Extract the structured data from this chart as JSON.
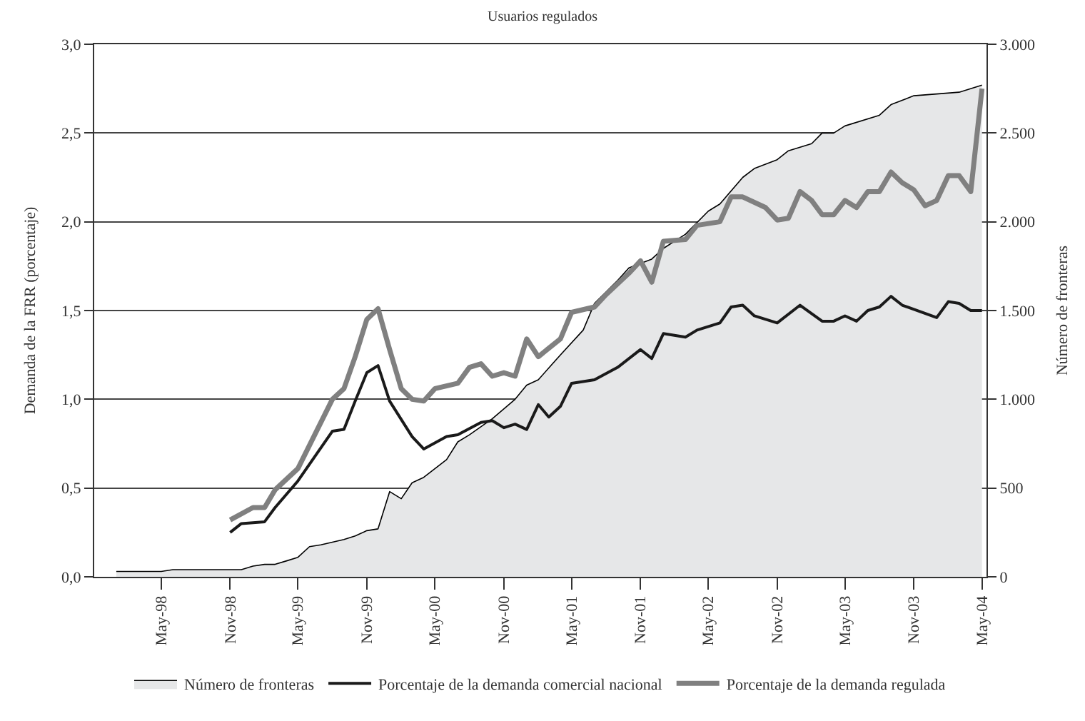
{
  "chart_data": {
    "type": "line",
    "title": "Usuarios regulados",
    "ylabel": "Demanda de la FRR (porcentaje)",
    "y2label": "Número de fronteras",
    "xlim": [
      "1997-11-03",
      "2004-05-13"
    ],
    "xticks": [
      {
        "value": "1998-05",
        "label": "May-98"
      },
      {
        "value": "1998-11",
        "label": "Nov-98"
      },
      {
        "value": "1999-05",
        "label": "May-99"
      },
      {
        "value": "1999-11",
        "label": "Nov-99"
      },
      {
        "value": "2000-05",
        "label": "May-00"
      },
      {
        "value": "2000-11",
        "label": "Nov-00"
      },
      {
        "value": "2001-05",
        "label": "May-01"
      },
      {
        "value": "2001-11",
        "label": "Nov-01"
      },
      {
        "value": "2002-05",
        "label": "May-02"
      },
      {
        "value": "2002-11",
        "label": "Nov-02"
      },
      {
        "value": "2003-05",
        "label": "May-03"
      },
      {
        "value": "2003-11",
        "label": "Nov-03"
      },
      {
        "value": "2004-05",
        "label": "May-04"
      }
    ],
    "ylim": [
      0,
      3
    ],
    "yticks": [
      {
        "value": 0,
        "label": "0,0"
      },
      {
        "value": 0.5,
        "label": "0,5"
      },
      {
        "value": 1,
        "label": "1,0"
      },
      {
        "value": 1.5,
        "label": "1,5"
      },
      {
        "value": 2,
        "label": "2,0"
      },
      {
        "value": 2.5,
        "label": "2,5"
      },
      {
        "value": 3,
        "label": "3,0"
      }
    ],
    "y2lim": [
      0,
      3000
    ],
    "y2ticks": [
      0,
      500,
      {
        "value": 1000,
        "label": "1.000"
      },
      {
        "value": 1500,
        "label": "1.500"
      },
      {
        "value": 2000,
        "label": "2.000"
      },
      {
        "value": 2500,
        "label": "2.500"
      },
      {
        "value": 3000,
        "label": "3.000"
      }
    ],
    "grid": "y",
    "legend": "bottom",
    "line_style": "solid",
    "series": [
      {
        "name": "Número de fronteras",
        "type": "area",
        "axis": "y2",
        "color": "#e6e7e8",
        "x": [
          "1998-01",
          "1998-05",
          "1998-06",
          "1998-12",
          "1999-01",
          "1999-02",
          "1999-03",
          "1999-04",
          "1999-05",
          "1999-06",
          "1999-07",
          "1999-09",
          "1999-10",
          "1999-11",
          "1999-12",
          "2000-01",
          "2000-02",
          "2000-03",
          "2000-04",
          "2000-06",
          "2000-07",
          "2000-08",
          "2000-10",
          "2000-12",
          "2001-01",
          "2001-02",
          "2001-04",
          "2001-06",
          "2001-07",
          "2001-09",
          "2001-10",
          "2001-12",
          "2002-01",
          "2002-03",
          "2002-05",
          "2002-06",
          "2002-08",
          "2002-09",
          "2002-11",
          "2002-12",
          "2003-02",
          "2003-03",
          "2003-04",
          "2003-05",
          "2003-08",
          "2003-09",
          "2003-11",
          "2004-01",
          "2004-03",
          "2004-05"
        ],
        "values": [
          30,
          30,
          40,
          40,
          60,
          70,
          70,
          90,
          110,
          170,
          180,
          210,
          230,
          260,
          270,
          480,
          440,
          530,
          560,
          660,
          760,
          800,
          890,
          1000,
          1080,
          1110,
          1250,
          1390,
          1540,
          1670,
          1740,
          1790,
          1850,
          1930,
          2060,
          2100,
          2250,
          2300,
          2350,
          2400,
          2440,
          2500,
          2500,
          2540,
          2600,
          2660,
          2710,
          2720,
          2730,
          2770
        ]
      },
      {
        "name": "Porcentaje de la demanda comercial nacional",
        "color": "#1a1a1a",
        "x": [
          "1998-11",
          "1998-12",
          "1999-02",
          "1999-03",
          "1999-05",
          "1999-08",
          "1999-09",
          "1999-10",
          "1999-11",
          "1999-12",
          "2000-01",
          "2000-03",
          "2000-04",
          "2000-06",
          "2000-07",
          "2000-09",
          "2000-10",
          "2000-11",
          "2000-12",
          "2001-01",
          "2001-02",
          "2001-03",
          "2001-04",
          "2001-05",
          "2001-07",
          "2001-09",
          "2001-11",
          "2001-12",
          "2002-01",
          "2002-03",
          "2002-04",
          "2002-06",
          "2002-07",
          "2002-08",
          "2002-09",
          "2002-11",
          "2003-01",
          "2003-03",
          "2003-04",
          "2003-05",
          "2003-06",
          "2003-07",
          "2003-08",
          "2003-09",
          "2003-10",
          "2004-01",
          "2004-02",
          "2004-03",
          "2004-04",
          "2004-05"
        ],
        "values": [
          0.25,
          0.3,
          0.31,
          0.39,
          0.54,
          0.82,
          0.83,
          0.99,
          1.15,
          1.19,
          0.99,
          0.79,
          0.72,
          0.79,
          0.8,
          0.87,
          0.88,
          0.84,
          0.86,
          0.83,
          0.97,
          0.9,
          0.96,
          1.09,
          1.11,
          1.18,
          1.28,
          1.23,
          1.37,
          1.35,
          1.39,
          1.43,
          1.52,
          1.53,
          1.47,
          1.43,
          1.53,
          1.44,
          1.44,
          1.47,
          1.44,
          1.5,
          1.52,
          1.58,
          1.53,
          1.46,
          1.55,
          1.54,
          1.5,
          1.5
        ]
      },
      {
        "name": "Porcentaje de la demanda regulada",
        "color": "#808080",
        "x": [
          "1998-11",
          "1999-01",
          "1999-02",
          "1999-03",
          "1999-05",
          "1999-08",
          "1999-09",
          "1999-10",
          "1999-11",
          "1999-12",
          "2000-01",
          "2000-02",
          "2000-03",
          "2000-04",
          "2000-05",
          "2000-07",
          "2000-08",
          "2000-09",
          "2000-10",
          "2000-11",
          "2000-12",
          "2001-01",
          "2001-02",
          "2001-04",
          "2001-05",
          "2001-07",
          "2001-08",
          "2001-10",
          "2001-11",
          "2001-12",
          "2002-01",
          "2002-03",
          "2002-04",
          "2002-06",
          "2002-07",
          "2002-08",
          "2002-10",
          "2002-11",
          "2002-12",
          "2003-01",
          "2003-02",
          "2003-03",
          "2003-04",
          "2003-05",
          "2003-06",
          "2003-07",
          "2003-08",
          "2003-09",
          "2003-10",
          "2003-11",
          "2003-12",
          "2004-01",
          "2004-02",
          "2004-03",
          "2004-04",
          "2004-05"
        ],
        "values": [
          0.32,
          0.39,
          0.39,
          0.49,
          0.61,
          1.0,
          1.06,
          1.24,
          1.45,
          1.51,
          1.28,
          1.06,
          1.0,
          0.99,
          1.06,
          1.09,
          1.18,
          1.2,
          1.13,
          1.15,
          1.13,
          1.34,
          1.24,
          1.34,
          1.49,
          1.52,
          1.59,
          1.71,
          1.78,
          1.66,
          1.89,
          1.9,
          1.98,
          2.0,
          2.14,
          2.14,
          2.08,
          2.01,
          2.02,
          2.17,
          2.12,
          2.04,
          2.04,
          2.12,
          2.08,
          2.17,
          2.17,
          2.28,
          2.22,
          2.18,
          2.09,
          2.12,
          2.26,
          2.26,
          2.17,
          2.75
        ]
      }
    ]
  }
}
